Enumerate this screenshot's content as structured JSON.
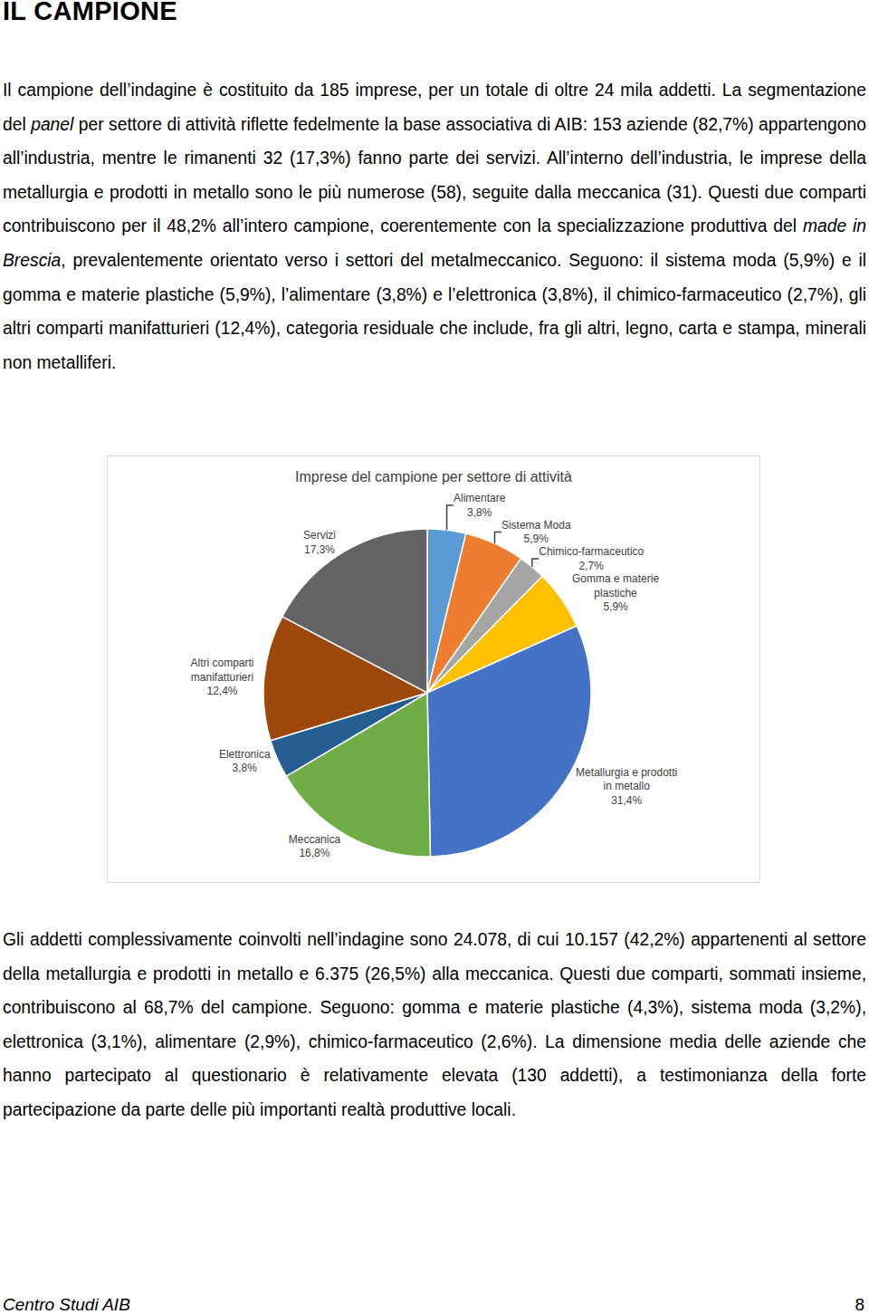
{
  "title": "IL CAMPIONE",
  "paragraphs_before": [
    [
      "Il campione dell’indagine è costituito da 185 imprese, per un totale di oltre 24 mila addetti. La segmentazione del ",
      {
        "text": "panel",
        "style": "italic"
      },
      " per settore di attività riflette fedelmente la base associativa di AIB: 153 aziende (82,7%) appartengono all’industria, mentre le rimanenti 32 (17,3%) fanno parte dei servizi. All’interno dell’industria, le imprese della metallurgia e prodotti in metallo sono le più numerose (58), seguite dalla meccanica (31). Questi due comparti contribuiscono per il 48,2% all’intero campione, coerentemente con la specializzazione produttiva del ",
      {
        "text": "made in Brescia",
        "style": "italic"
      },
      ", prevalentemente orientato verso i settori del metalmeccanico. Seguono: il sistema moda (5,9%) e il gomma e materie plastiche (5,9%), l’alimentare (3,8%) e l’elettronica (3,8%), il chimico-farmaceutico (2,7%), gli altri comparti manifatturieri (12,4%), categoria residuale che include, fra gli altri, legno, carta e stampa, minerali non metalliferi."
    ]
  ],
  "chart_data": {
    "type": "pie",
    "title": "Imprese del campione per settore di attività",
    "categories": [
      "Alimentare",
      "Sistema Moda",
      "Chimico-farmaceutico",
      "Gomma e materie plastiche",
      "Metallurgia e prodotti in metallo",
      "Meccanica",
      "Elettronica",
      "Altri comparti manifatturieri",
      "Servizi"
    ],
    "values": [
      3.8,
      5.9,
      2.7,
      5.9,
      31.4,
      16.8,
      3.8,
      12.4,
      17.3
    ],
    "value_labels": [
      "3,8%",
      "5,9%",
      "2,7%",
      "5,9%",
      "31,4%",
      "16,8%",
      "3,8%",
      "12,4%",
      "17,3%"
    ],
    "colors": [
      "#5b9bd5",
      "#ed7d31",
      "#a5a5a5",
      "#ffc000",
      "#4472c4",
      "#70ad47",
      "#255e91",
      "#9e480e",
      "#636363"
    ],
    "data_labels": true
  },
  "paragraphs_after": [
    [
      "Gli addetti complessivamente coinvolti nell’indagine sono 24.078, di cui 10.157 (42,2%) appartenenti al settore della metallurgia e prodotti in metallo e 6.375 (26,5%) alla meccanica. Questi due comparti, sommati insieme, contribuiscono al 68,7% del campione. Seguono: gomma e materie plastiche (4,3%), sistema moda (3,2%), elettronica (3,1%), alimentare (2,9%), chimico-farmaceutico (2,6%). La dimensione media delle aziende che hanno partecipato al questionario è relativamente elevata (130 addetti), a testimonianza della forte partecipazione da parte delle più importanti realtà produttive locali."
    ]
  ],
  "footer": {
    "left": "Centro Studi AIB",
    "page": "8"
  }
}
